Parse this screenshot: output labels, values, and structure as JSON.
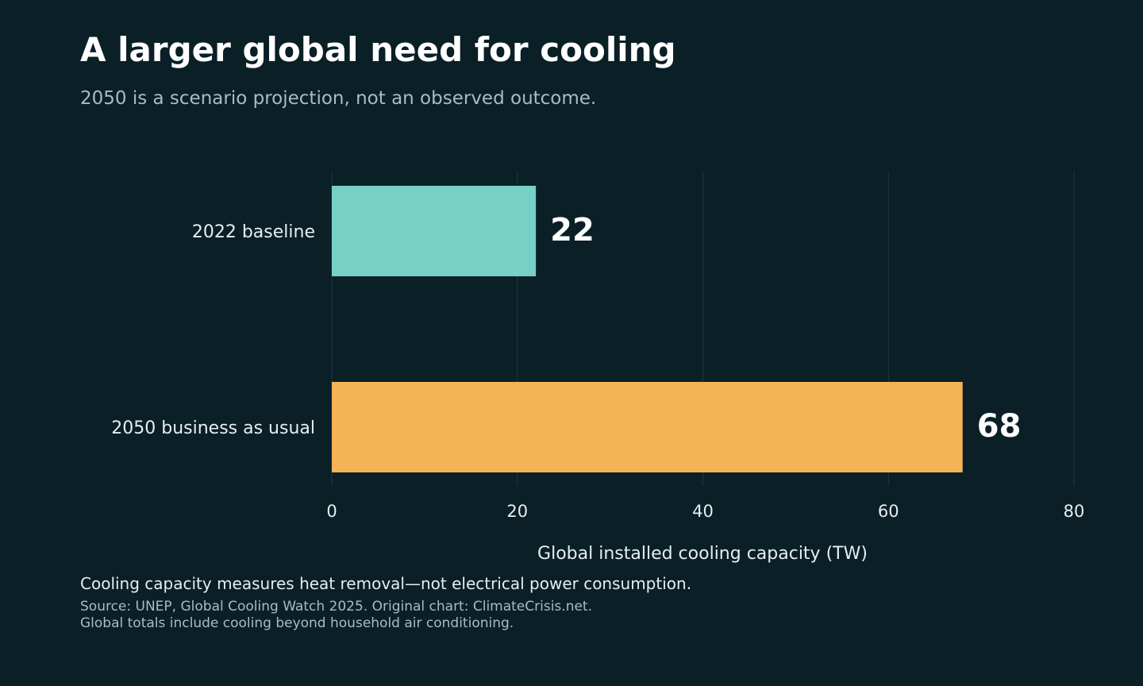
{
  "header": {
    "title": "A larger global need for cooling",
    "subtitle": "2050 is a scenario projection, not an observed outcome."
  },
  "chart_data": {
    "type": "bar",
    "orientation": "horizontal",
    "categories": [
      "2022 baseline",
      "2050 business as usual"
    ],
    "values": [
      22,
      68
    ],
    "value_labels": [
      "22",
      "68"
    ],
    "bar_colors": [
      "#76d0c5",
      "#f4b455"
    ],
    "xlabel": "Global installed cooling capacity (TW)",
    "ylabel": "",
    "xlim": [
      0,
      80
    ],
    "xticks": [
      0,
      20,
      40,
      60,
      80
    ],
    "xtick_labels": [
      "0",
      "20",
      "40",
      "60",
      "80"
    ],
    "grid": "vertical",
    "legend": "none"
  },
  "footer": {
    "note": "Cooling capacity measures heat removal—not electrical power consumption.",
    "source_line1": "Source: UNEP, Global Cooling Watch 2025. Original chart: ClimateCrisis.net.",
    "source_line2": "Global totals include cooling beyond household air conditioning."
  },
  "colors": {
    "background": "#0a1f26",
    "gridline": "#1c3a40",
    "text_primary": "#ffffff",
    "text_muted": "#a9bcc2"
  }
}
